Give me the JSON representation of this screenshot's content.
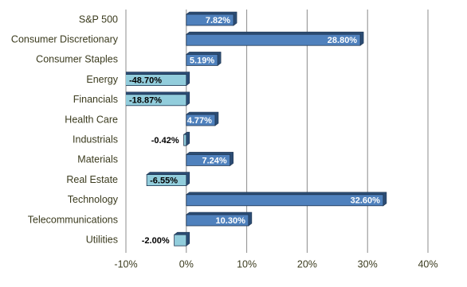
{
  "chart_data": {
    "type": "barh",
    "categories": [
      "S&P 500",
      "Consumer Discretionary",
      "Consumer Staples",
      "Energy",
      "Financials",
      "Health Care",
      "Industrials",
      "Materials",
      "Real Estate",
      "Technology",
      "Telecommunications",
      "Utilities"
    ],
    "values": [
      7.82,
      28.8,
      5.19,
      -48.7,
      -18.87,
      4.77,
      -0.42,
      7.24,
      -6.55,
      32.6,
      10.3,
      -2.0
    ],
    "value_labels": [
      "7.82%",
      "28.80%",
      "5.19%",
      "-48.70%",
      "-18.87%",
      "4.77%",
      "-0.42%",
      "7.24%",
      "-6.55%",
      "32.60%",
      "10.30%",
      "-2.00%"
    ],
    "color": "#4f81bd",
    "negative_color": "#92cddc",
    "xlim": [
      -10,
      40
    ],
    "xticks": [
      {
        "value": -10,
        "label": "-10%"
      },
      {
        "value": 0,
        "label": "0%"
      },
      {
        "value": 10,
        "label": "10%"
      },
      {
        "value": 20,
        "label": "20%"
      },
      {
        "value": 30,
        "label": "30%"
      },
      {
        "value": 40,
        "label": "40%"
      }
    ],
    "grid": true
  }
}
